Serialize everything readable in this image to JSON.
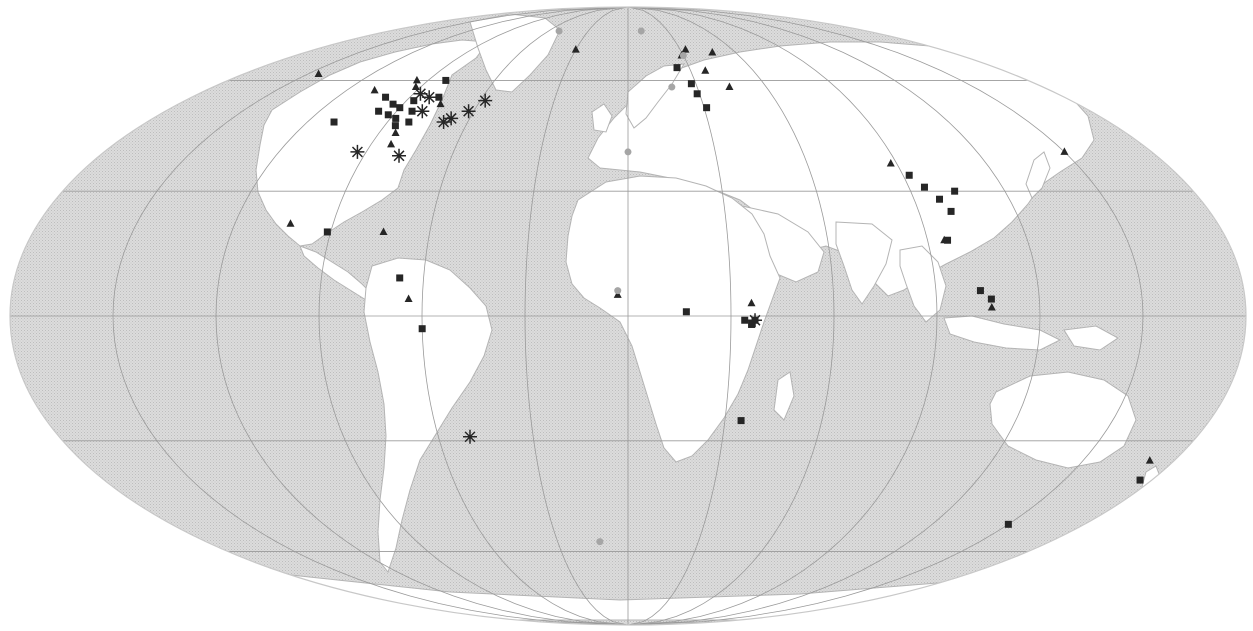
{
  "map": {
    "projection": "mollweide",
    "ocean_color": "#d9d9d9",
    "land_color": "#ffffff",
    "graticule_color": "#9a9a9a",
    "marker_color": "#262626",
    "faded_marker_color": "#a5a5a5"
  },
  "markers": [
    {
      "type": "square",
      "lon": -100,
      "lat": 55
    },
    {
      "type": "square",
      "lon": -97,
      "lat": 51
    },
    {
      "type": "square",
      "lon": -94,
      "lat": 53
    },
    {
      "type": "square",
      "lon": -92,
      "lat": 50
    },
    {
      "type": "square",
      "lon": -90,
      "lat": 52
    },
    {
      "type": "square",
      "lon": -88,
      "lat": 49
    },
    {
      "type": "square",
      "lon": -87,
      "lat": 54
    },
    {
      "type": "square",
      "lon": -84,
      "lat": 51
    },
    {
      "type": "square",
      "lon": -86,
      "lat": 47
    },
    {
      "type": "square",
      "lon": -82,
      "lat": 48
    },
    {
      "type": "square",
      "lon": -82,
      "lat": 60
    },
    {
      "type": "square",
      "lon": -110,
      "lat": 48
    },
    {
      "type": "square",
      "lon": -78,
      "lat": 55
    },
    {
      "type": "square",
      "lon": -91,
      "lat": 20
    },
    {
      "type": "square",
      "lon": -67,
      "lat": 9
    },
    {
      "type": "square",
      "lon": -60,
      "lat": -3
    },
    {
      "type": "square",
      "lon": 24,
      "lat": 64
    },
    {
      "type": "square",
      "lon": 28,
      "lat": 59
    },
    {
      "type": "square",
      "lon": 29,
      "lat": 56
    },
    {
      "type": "square",
      "lon": 31,
      "lat": 52
    },
    {
      "type": "square",
      "lon": 17,
      "lat": 1
    },
    {
      "type": "square",
      "lon": 34,
      "lat": -1
    },
    {
      "type": "square",
      "lon": 36,
      "lat": -2
    },
    {
      "type": "square",
      "lon": 37,
      "lat": -1
    },
    {
      "type": "square",
      "lon": 35,
      "lat": -25
    },
    {
      "type": "square",
      "lon": 92,
      "lat": 34
    },
    {
      "type": "square",
      "lon": 95,
      "lat": 31
    },
    {
      "type": "square",
      "lon": 98,
      "lat": 28
    },
    {
      "type": "square",
      "lon": 100,
      "lat": 25
    },
    {
      "type": "square",
      "lon": 104,
      "lat": 30
    },
    {
      "type": "square",
      "lon": 96,
      "lat": 18
    },
    {
      "type": "square",
      "lon": 103,
      "lat": 6
    },
    {
      "type": "square",
      "lon": 106,
      "lat": 4
    },
    {
      "type": "square",
      "lon": 176,
      "lat": -40
    },
    {
      "type": "square",
      "lon": 150,
      "lat": -52
    },
    {
      "type": "triangle",
      "lon": -145,
      "lat": 62
    },
    {
      "type": "triangle",
      "lon": -108,
      "lat": 57
    },
    {
      "type": "triangle",
      "lon": -95,
      "lat": 60
    },
    {
      "type": "triangle",
      "lon": -92,
      "lat": 58
    },
    {
      "type": "triangle",
      "lon": -75,
      "lat": 53
    },
    {
      "type": "triangle",
      "lon": -84,
      "lat": 45
    },
    {
      "type": "triangle",
      "lon": -83,
      "lat": 42
    },
    {
      "type": "triangle",
      "lon": -103,
      "lat": 22
    },
    {
      "type": "triangle",
      "lon": -74,
      "lat": 20
    },
    {
      "type": "triangle",
      "lon": -64,
      "lat": 4
    },
    {
      "type": "triangle",
      "lon": -30,
      "lat": 70
    },
    {
      "type": "triangle",
      "lon": 29,
      "lat": 68
    },
    {
      "type": "triangle",
      "lon": 33,
      "lat": 70
    },
    {
      "type": "triangle",
      "lon": 47,
      "lat": 69
    },
    {
      "type": "triangle",
      "lon": 44,
      "lat": 58
    },
    {
      "type": "triangle",
      "lon": 37,
      "lat": 63
    },
    {
      "type": "triangle",
      "lon": -3,
      "lat": 5
    },
    {
      "type": "triangle",
      "lon": 36,
      "lat": 3
    },
    {
      "type": "triangle",
      "lon": 88,
      "lat": 37
    },
    {
      "type": "triangle",
      "lon": 95,
      "lat": 18
    },
    {
      "type": "triangle",
      "lon": 106,
      "lat": 2
    },
    {
      "type": "triangle",
      "lon": 150,
      "lat": 40
    },
    {
      "type": "triangle",
      "lon": 172,
      "lat": -35
    },
    {
      "type": "asterisk",
      "lon": -87,
      "lat": 56
    },
    {
      "type": "asterisk",
      "lon": -82,
      "lat": 55
    },
    {
      "type": "asterisk",
      "lon": -80,
      "lat": 51
    },
    {
      "type": "asterisk",
      "lon": -69,
      "lat": 48
    },
    {
      "type": "asterisk",
      "lon": -67,
      "lat": 49
    },
    {
      "type": "asterisk",
      "lon": -62,
      "lat": 51
    },
    {
      "type": "asterisk",
      "lon": -58,
      "lat": 54
    },
    {
      "type": "asterisk",
      "lon": -93,
      "lat": 40
    },
    {
      "type": "asterisk",
      "lon": -78,
      "lat": 39
    },
    {
      "type": "asterisk",
      "lon": -50,
      "lat": -29
    },
    {
      "type": "asterisk",
      "lon": 37,
      "lat": -1
    },
    {
      "type": "circle",
      "lon": -52,
      "lat": 77
    },
    {
      "type": "circle",
      "lon": 10,
      "lat": 77
    },
    {
      "type": "circle",
      "lon": 30,
      "lat": 68
    },
    {
      "type": "circle",
      "lon": 19,
      "lat": 58
    },
    {
      "type": "circle",
      "lon": 0,
      "lat": 40
    },
    {
      "type": "circle",
      "lon": -3,
      "lat": 6
    },
    {
      "type": "circle",
      "lon": -12,
      "lat": -57
    }
  ]
}
